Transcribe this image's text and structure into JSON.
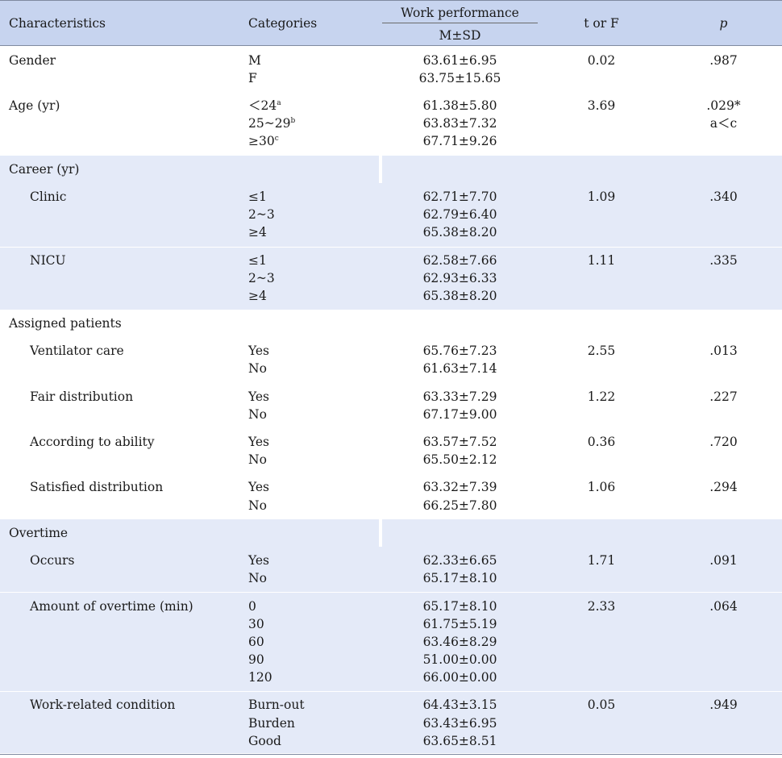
{
  "header": {
    "characteristics": "Characteristics",
    "categories": "Categories",
    "work_performance": "Work performance",
    "msd": "M±SD",
    "t_or_f": "t or F",
    "p": "p"
  },
  "groups": {
    "career": "Career (yr)",
    "assigned": "Assigned patients",
    "overtime": "Overtime"
  },
  "rows": [
    {
      "label": "Gender",
      "cats": [
        "M",
        "F"
      ],
      "vals": [
        "63.61±6.95",
        "63.75±15.65"
      ],
      "t": "0.02",
      "p": ".987"
    },
    {
      "label": "Age (yr)",
      "cats": [
        "＜24",
        "25~29",
        "≥30"
      ],
      "sups": [
        "a",
        "b",
        "c"
      ],
      "vals": [
        "61.38±5.80",
        "63.83±7.32",
        "67.71±9.26"
      ],
      "t": "3.69",
      "p": ".029*",
      "posthoc": "a＜c"
    },
    {
      "label": "Clinic",
      "cats": [
        "≤1",
        "2~3",
        "≥4"
      ],
      "vals": [
        "62.71±7.70",
        "62.79±6.40",
        "65.38±8.20"
      ],
      "t": "1.09",
      "p": ".340"
    },
    {
      "label": "NICU",
      "cats": [
        "≤1",
        "2~3",
        "≥4"
      ],
      "vals": [
        "62.58±7.66",
        "62.93±6.33",
        "65.38±8.20"
      ],
      "t": "1.11",
      "p": ".335"
    },
    {
      "label": "Ventilator care",
      "cats": [
        "Yes",
        "No"
      ],
      "vals": [
        "65.76±7.23",
        "61.63±7.14"
      ],
      "t": "2.55",
      "p": ".013"
    },
    {
      "label": "Fair distribution",
      "cats": [
        "Yes",
        "No"
      ],
      "vals": [
        "63.33±7.29",
        "67.17±9.00"
      ],
      "t": "1.22",
      "p": ".227"
    },
    {
      "label": "According to ability",
      "cats": [
        "Yes",
        "No"
      ],
      "vals": [
        "63.57±7.52",
        "65.50±2.12"
      ],
      "t": "0.36",
      "p": ".720"
    },
    {
      "label": "Satisfied distribution",
      "cats": [
        "Yes",
        "No"
      ],
      "vals": [
        "63.32±7.39",
        "66.25±7.80"
      ],
      "t": "1.06",
      "p": ".294"
    },
    {
      "label": "Occurs",
      "cats": [
        "Yes",
        "No"
      ],
      "vals": [
        "62.33±6.65",
        "65.17±8.10"
      ],
      "t": "1.71",
      "p": ".091"
    },
    {
      "label": "Amount of overtime (min)",
      "cats": [
        "0",
        "30",
        "60",
        "90",
        "120"
      ],
      "vals": [
        "65.17±8.10",
        "61.75±5.19",
        "63.46±8.29",
        "51.00±0.00",
        "66.00±0.00"
      ],
      "t": "2.33",
      "p": ".064"
    },
    {
      "label": "Work-related condition",
      "cats": [
        "Burn-out",
        "Burden",
        "Good"
      ],
      "vals": [
        "64.43±3.15",
        "63.43±6.95",
        "63.65±8.51"
      ],
      "t": "0.05",
      "p": ".949"
    }
  ]
}
